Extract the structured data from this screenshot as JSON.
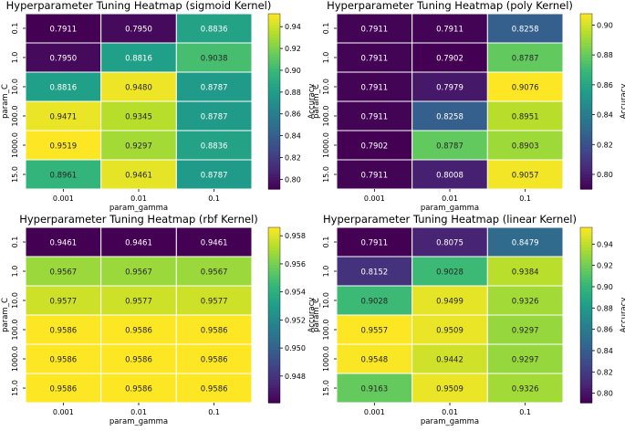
{
  "chart_data": [
    {
      "type": "heatmap",
      "title": "Hyperparameter Tuning Heatmap (sigmoid Kernel)",
      "xlabel": "param_gamma",
      "ylabel": "param_C",
      "x_categories": [
        "0.001",
        "0.01",
        "0.1"
      ],
      "y_categories": [
        "0.1",
        "1.0",
        "10.0",
        "100.0",
        "1000.0",
        "15.0"
      ],
      "values": [
        [
          0.7911,
          0.795,
          0.8836
        ],
        [
          0.795,
          0.8816,
          0.9038
        ],
        [
          0.8816,
          0.948,
          0.8787
        ],
        [
          0.9471,
          0.9345,
          0.8787
        ],
        [
          0.9519,
          0.9297,
          0.8836
        ],
        [
          0.8961,
          0.9461,
          0.8787
        ]
      ],
      "colorbar_label": "Accuracy",
      "colorbar_range": [
        0.7911,
        0.9519
      ],
      "colorbar_ticks": [
        "0.80",
        "0.82",
        "0.84",
        "0.86",
        "0.88",
        "0.90",
        "0.92",
        "0.94"
      ],
      "colormap": "viridis"
    },
    {
      "type": "heatmap",
      "title": "Hyperparameter Tuning Heatmap (poly Kernel)",
      "xlabel": "param_gamma",
      "ylabel": "param_C",
      "x_categories": [
        "0.001",
        "0.01",
        "0.1"
      ],
      "y_categories": [
        "0.1",
        "1.0",
        "10.0",
        "100.0",
        "1000.0",
        "15.0"
      ],
      "values": [
        [
          0.7911,
          0.7911,
          0.8258
        ],
        [
          0.7911,
          0.7902,
          0.8787
        ],
        [
          0.7911,
          0.7979,
          0.9076
        ],
        [
          0.7911,
          0.8258,
          0.8951
        ],
        [
          0.7902,
          0.8787,
          0.8903
        ],
        [
          0.7911,
          0.8008,
          0.9057
        ]
      ],
      "colorbar_label": "Accuracy",
      "colorbar_range": [
        0.7902,
        0.9076
      ],
      "colorbar_ticks": [
        "0.80",
        "0.82",
        "0.84",
        "0.86",
        "0.88",
        "0.90"
      ],
      "colormap": "viridis"
    },
    {
      "type": "heatmap",
      "title": "Hyperparameter Tuning Heatmap (rbf Kernel)",
      "xlabel": "param_gamma",
      "ylabel": "param_C",
      "x_categories": [
        "0.001",
        "0.01",
        "0.1"
      ],
      "y_categories": [
        "0.1",
        "1.0",
        "10.0",
        "100.0",
        "1000.0",
        "15.0"
      ],
      "values": [
        [
          0.9461,
          0.9461,
          0.9461
        ],
        [
          0.9567,
          0.9567,
          0.9567
        ],
        [
          0.9577,
          0.9577,
          0.9577
        ],
        [
          0.9586,
          0.9586,
          0.9586
        ],
        [
          0.9586,
          0.9586,
          0.9586
        ],
        [
          0.9586,
          0.9586,
          0.9586
        ]
      ],
      "colorbar_label": "Accuracy",
      "colorbar_range": [
        0.9461,
        0.9586
      ],
      "colorbar_ticks": [
        "0.948",
        "0.950",
        "0.952",
        "0.954",
        "0.956",
        "0.958"
      ],
      "colormap": "viridis"
    },
    {
      "type": "heatmap",
      "title": "Hyperparameter Tuning Heatmap (linear Kernel)",
      "xlabel": "param_gamma",
      "ylabel": "param_C",
      "x_categories": [
        "0.001",
        "0.01",
        "0.1"
      ],
      "y_categories": [
        "0.1",
        "1.0",
        "10.0",
        "100.0",
        "1000.0",
        "15.0"
      ],
      "values": [
        [
          0.7911,
          0.8075,
          0.8479
        ],
        [
          0.8152,
          0.9028,
          0.9384
        ],
        [
          0.9028,
          0.9499,
          0.9326
        ],
        [
          0.9557,
          0.9509,
          0.9297
        ],
        [
          0.9548,
          0.9442,
          0.9297
        ],
        [
          0.9163,
          0.9509,
          0.9326
        ]
      ],
      "colorbar_label": "Accuracy",
      "colorbar_range": [
        0.7911,
        0.9557
      ],
      "colorbar_ticks": [
        "0.80",
        "0.82",
        "0.84",
        "0.86",
        "0.88",
        "0.90",
        "0.92",
        "0.94"
      ],
      "colormap": "viridis"
    }
  ]
}
